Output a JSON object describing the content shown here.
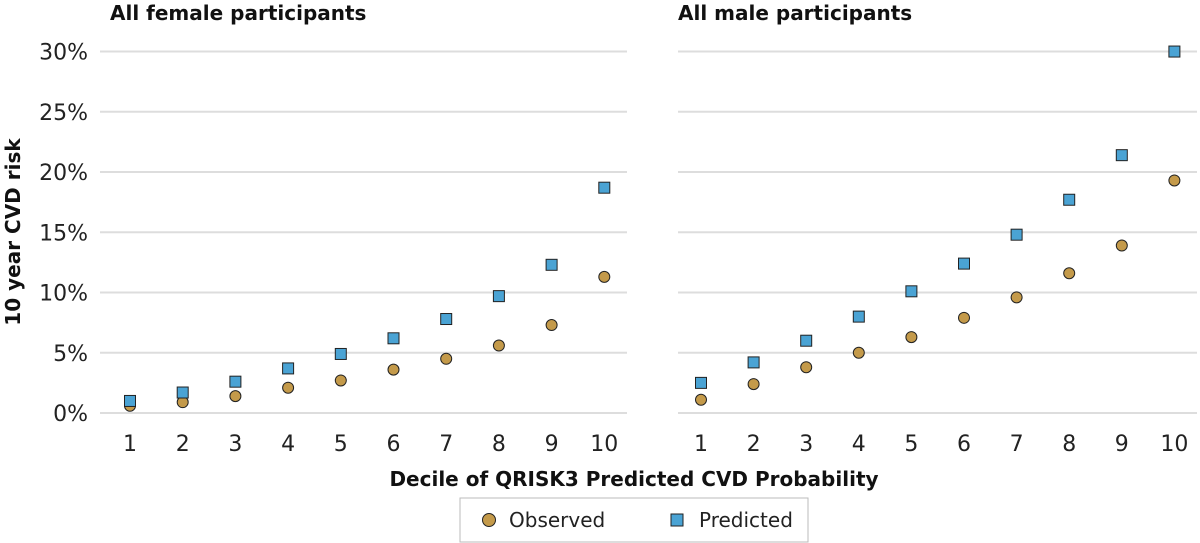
{
  "chart_data": {
    "type": "scatter",
    "ylabel": "10 year CVD risk",
    "xlabel": "Decile of QRISK3 Predicted CVD Probability",
    "ylim": [
      0,
      31
    ],
    "yticks": [
      0,
      5,
      10,
      15,
      20,
      25,
      30
    ],
    "ytick_labels": [
      "0%",
      "5%",
      "10%",
      "15%",
      "20%",
      "25%",
      "30%"
    ],
    "x": [
      1,
      2,
      3,
      4,
      5,
      6,
      7,
      8,
      9,
      10
    ],
    "xtick_labels": [
      "1",
      "2",
      "3",
      "4",
      "5",
      "6",
      "7",
      "8",
      "9",
      "10"
    ],
    "grid": "horizontal",
    "legend": {
      "position": "bottom",
      "entries": [
        {
          "name": "Observed",
          "marker": "circle",
          "color": "#c49a4a"
        },
        {
          "name": "Predicted",
          "marker": "square",
          "color": "#4aa3d4"
        }
      ]
    },
    "panels": [
      {
        "title": "All female participants",
        "series": [
          {
            "name": "Observed",
            "values": [
              0.6,
              0.9,
              1.4,
              2.1,
              2.7,
              3.6,
              4.5,
              5.6,
              7.3,
              11.3
            ]
          },
          {
            "name": "Predicted",
            "values": [
              1.0,
              1.7,
              2.6,
              3.7,
              4.9,
              6.2,
              7.8,
              9.7,
              12.3,
              18.7
            ]
          }
        ]
      },
      {
        "title": "All male participants",
        "series": [
          {
            "name": "Observed",
            "values": [
              1.1,
              2.4,
              3.8,
              5.0,
              6.3,
              7.9,
              9.6,
              11.6,
              13.9,
              19.3
            ]
          },
          {
            "name": "Predicted",
            "values": [
              2.5,
              4.2,
              6.0,
              8.0,
              10.1,
              12.4,
              14.8,
              17.7,
              21.4,
              30.0
            ]
          }
        ]
      }
    ]
  },
  "colors": {
    "grid": "#dddddd",
    "marker_stroke": "#222222",
    "legend_border": "#bbbbbb"
  }
}
